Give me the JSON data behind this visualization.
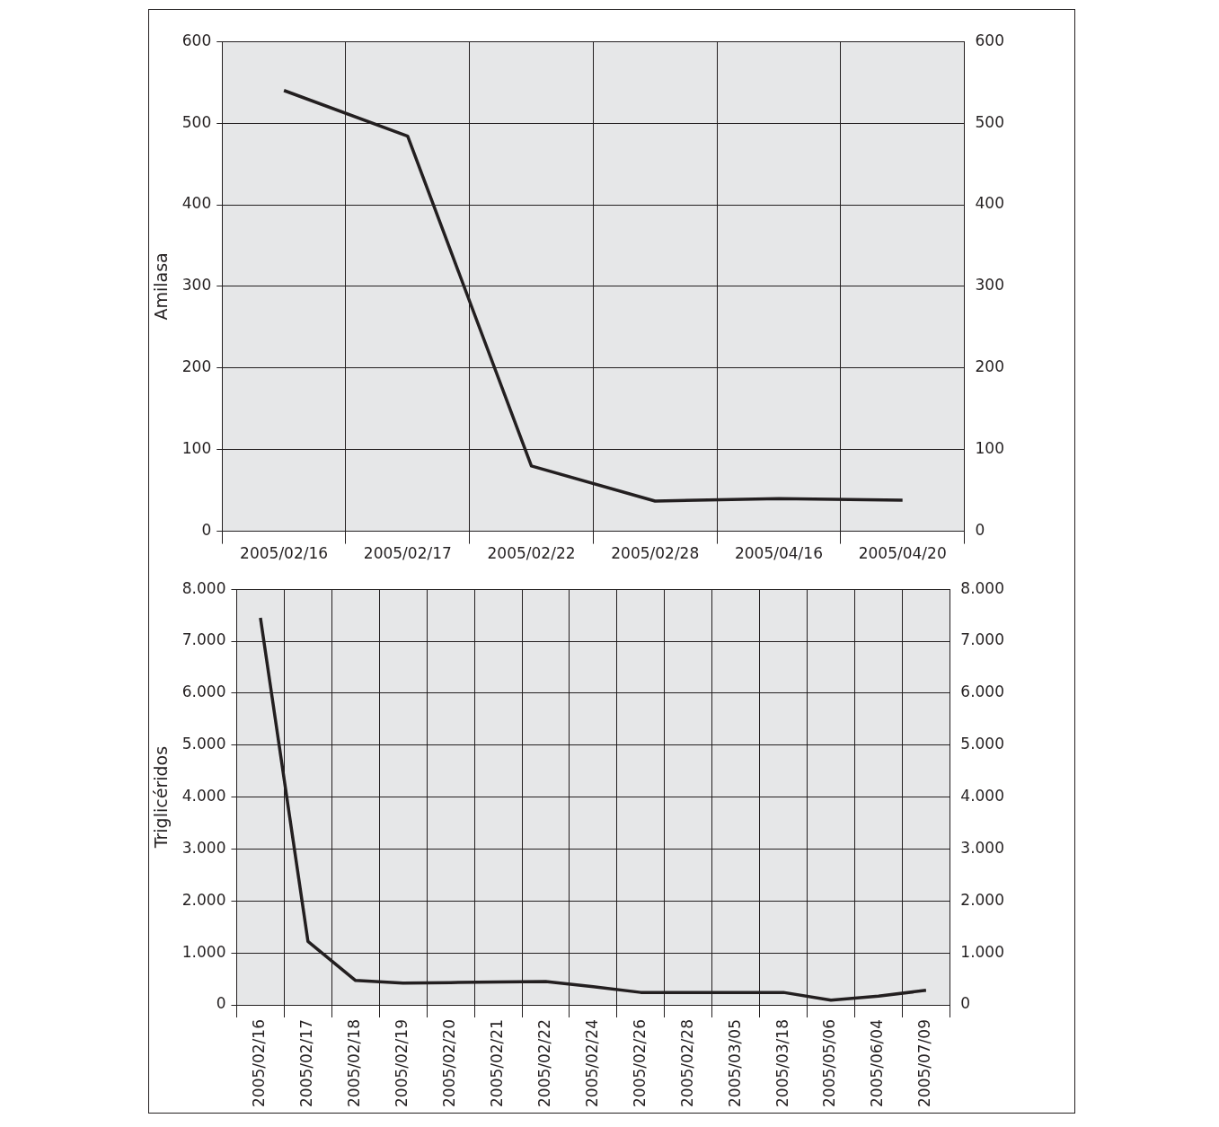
{
  "chart_data": [
    {
      "type": "line",
      "ylabel": "Amilasa",
      "categories": [
        "2005/02/16",
        "2005/02/17",
        "2005/02/22",
        "2005/02/28",
        "2005/04/16",
        "2005/04/20"
      ],
      "series": [
        {
          "color": "#231f20",
          "values": [
            540,
            484,
            80,
            37,
            40,
            38
          ]
        }
      ],
      "ylim": [
        0,
        600
      ],
      "yticks": [
        0,
        100,
        200,
        300,
        400,
        500,
        600
      ],
      "y2lim": [
        0,
        600
      ],
      "y2ticks": [
        0,
        100,
        200,
        300,
        400,
        500,
        600
      ],
      "grid": true,
      "legend": false,
      "marker": "none"
    },
    {
      "type": "line",
      "ylabel": "Triglicéridos",
      "categories": [
        "2005/02/16",
        "2005/02/17",
        "2005/02/18",
        "2005/02/19",
        "2005/02/20",
        "2005/02/21",
        "2005/02/22",
        "2005/02/24",
        "2005/02/26",
        "2005/02/28",
        "2005/03/05",
        "2005/03/18",
        "2005/05/06",
        "2005/06/04",
        "2005/07/09"
      ],
      "series": [
        {
          "color": "#231f20",
          "values": [
            7450,
            1220,
            470,
            420,
            430,
            440,
            450,
            350,
            240,
            240,
            240,
            240,
            90,
            170,
            280
          ]
        }
      ],
      "ylim": [
        0,
        8000
      ],
      "yticks": [
        0,
        {
          "value": 1000,
          "label": "1.000"
        },
        {
          "value": 2000,
          "label": "2.000"
        },
        {
          "value": 3000,
          "label": "3.000"
        },
        {
          "value": 4000,
          "label": "4.000"
        },
        {
          "value": 5000,
          "label": "5.000"
        },
        {
          "value": 6000,
          "label": "6.000"
        },
        {
          "value": 7000,
          "label": "7.000"
        },
        {
          "value": 8000,
          "label": "8.000"
        }
      ],
      "y2lim": [
        0,
        8000
      ],
      "y2ticks": [
        0,
        {
          "value": 1000,
          "label": "1.000"
        },
        {
          "value": 2000,
          "label": "2.000"
        },
        {
          "value": 3000,
          "label": "3.000"
        },
        {
          "value": 4000,
          "label": "4.000"
        },
        {
          "value": 5000,
          "label": "5.000"
        },
        {
          "value": 6000,
          "label": "6.000"
        },
        {
          "value": 7000,
          "label": "7.000"
        },
        {
          "value": 8000,
          "label": "8.000"
        }
      ],
      "grid": true,
      "legend": false,
      "marker": "none"
    }
  ]
}
